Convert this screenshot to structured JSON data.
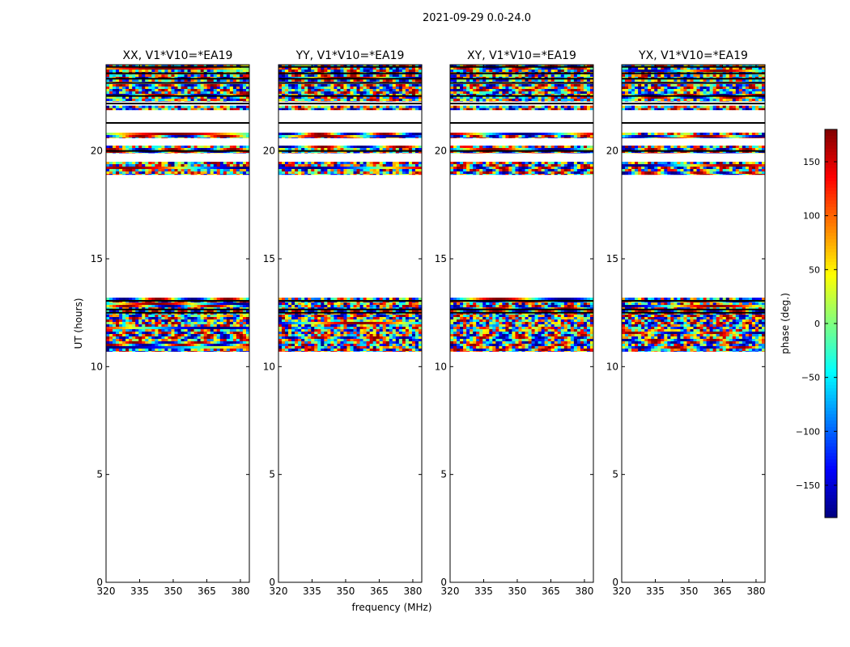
{
  "suptitle": "2021-09-29 0.0-24.0",
  "chart_data": {
    "type": "heatmap",
    "panels": [
      {
        "title": "XX, V1*V10=*EA19",
        "seed": 11
      },
      {
        "title": "YY, V1*V10=*EA19",
        "seed": 23
      },
      {
        "title": "XY, V1*V10=*EA19",
        "seed": 37
      },
      {
        "title": "YX, V1*V10=*EA19",
        "seed": 53
      }
    ],
    "xlabel": "frequency (MHz)",
    "ylabel": "UT (hours)",
    "xlim": [
      320,
      384
    ],
    "ylim": [
      0,
      24
    ],
    "xticks": [
      320,
      335,
      350,
      365,
      380
    ],
    "yticks": [
      0,
      5,
      10,
      15,
      20
    ],
    "colorbar": {
      "label": "phase (deg.)",
      "range": [
        -180,
        180
      ],
      "ticks": [
        -150,
        -100,
        -50,
        0,
        50,
        100,
        150
      ],
      "colormap": "jet"
    },
    "data_time_ranges_hours": [
      [
        10.7,
        13.2
      ],
      [
        18.9,
        19.5
      ],
      [
        19.9,
        20.25
      ],
      [
        20.6,
        20.85
      ],
      [
        21.9,
        22.1
      ],
      [
        22.3,
        23.1
      ],
      [
        23.2,
        24.0
      ]
    ],
    "flagged_rows_hours": [
      12.5,
      12.65,
      13.05,
      20.0,
      21.3,
      22.2,
      22.55,
      23.15,
      23.35,
      23.6,
      23.9
    ]
  }
}
